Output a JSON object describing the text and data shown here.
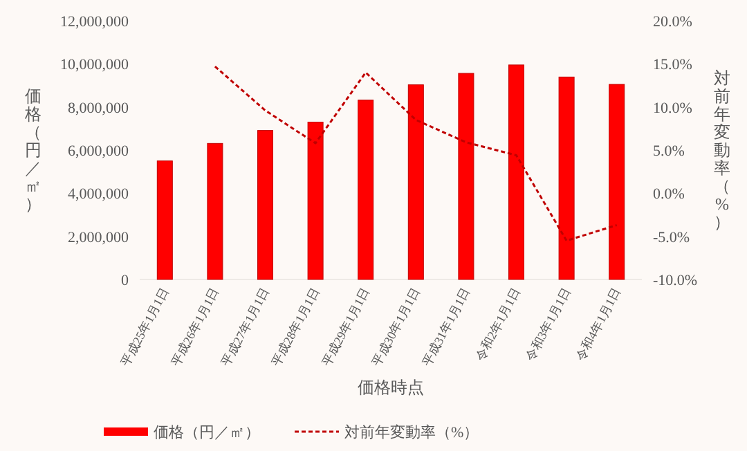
{
  "chart_data": {
    "type": "bar",
    "xlabel": "価格時点",
    "ylabel": "価格（円／㎡）",
    "y2label": "対前年変動率（%）",
    "categories": [
      "平成25年1月1日",
      "平成26年1月1日",
      "平成27年1月1日",
      "平成28年1月1日",
      "平成29年1月1日",
      "平成30年1月1日",
      "平成31年1月1日",
      "令和2年1月1日",
      "令和3年1月1日",
      "令和4年1月1日"
    ],
    "series": [
      {
        "name": "価格（円／㎡）",
        "color": "#ff0000",
        "values": [
          5500000,
          6310000,
          6910000,
          7300000,
          8320000,
          9030000,
          9560000,
          9950000,
          9390000,
          9050000
        ]
      },
      {
        "name": "対前年変動率（%）",
        "type": "line",
        "axis": "y2",
        "color": "#c00000",
        "line_style": "dashed",
        "marker": "none",
        "values": [
          null,
          14.7,
          9.6,
          5.8,
          14.0,
          8.5,
          5.9,
          4.4,
          -5.5,
          -3.7
        ]
      }
    ],
    "ylim": [
      0,
      12000000
    ],
    "yticks": [
      0,
      {
        "value": 2000000,
        "label": "2,000,000"
      },
      {
        "value": 4000000,
        "label": "4,000,000"
      },
      {
        "value": 6000000,
        "label": "6,000,000"
      },
      {
        "value": 8000000,
        "label": "8,000,000"
      },
      {
        "value": 10000000,
        "label": "10,000,000"
      },
      {
        "value": 12000000,
        "label": "12,000,000"
      }
    ],
    "y2lim": [
      -10,
      20
    ],
    "y2ticks": [
      {
        "value": -10,
        "label": "-10.0%"
      },
      {
        "value": -5,
        "label": "-5.0%"
      },
      {
        "value": 0,
        "label": "0.0%"
      },
      {
        "value": 5,
        "label": "5.0%"
      },
      {
        "value": 10,
        "label": "10.0%"
      },
      {
        "value": 15,
        "label": "15.0%"
      },
      {
        "value": 20,
        "label": "20.0%"
      }
    ],
    "grid": false,
    "legend": "bottom"
  }
}
